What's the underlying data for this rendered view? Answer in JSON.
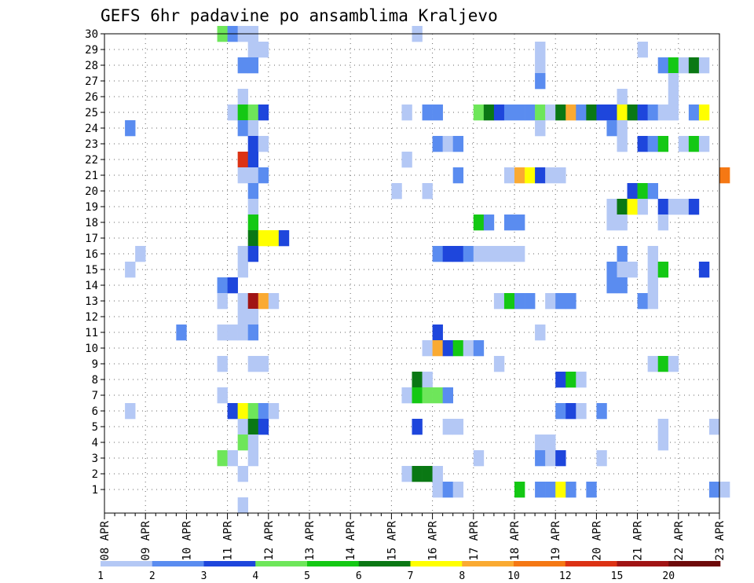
{
  "chart_data": {
    "type": "heatmap",
    "title": "GEFS 6hr padavine po ansamblima Kraljevo",
    "xlabel": "",
    "ylabel": "",
    "x_tick_labels": [
      "08 APR",
      "09 APR",
      "10 APR",
      "11 APR",
      "12 APR",
      "13 APR",
      "14 APR",
      "15 APR",
      "16 APR",
      "17 APR",
      "18 APR",
      "19 APR",
      "20 APR",
      "21 APR",
      "22 APR",
      "23 APR"
    ],
    "y_tick_labels": [
      "1",
      "2",
      "3",
      "4",
      "5",
      "6",
      "7",
      "8",
      "9",
      "10",
      "11",
      "12",
      "13",
      "14",
      "15",
      "16",
      "17",
      "18",
      "19",
      "20",
      "21",
      "22",
      "23",
      "24",
      "25",
      "26",
      "27",
      "28",
      "29",
      "30"
    ],
    "x_range": [
      "08 APR 00Z",
      "23 APR 00Z"
    ],
    "x_step_hours": 6,
    "y_range": [
      0,
      30
    ],
    "grid": "dotted",
    "color_levels": [
      "1",
      "2",
      "3",
      "4",
      "5",
      "6",
      "7",
      "8",
      "10",
      "12",
      "15",
      "20"
    ],
    "color_scale": [
      "#b4c8f5",
      "#5a8cf0",
      "#1e46dc",
      "#6ee65a",
      "#14c814",
      "#0a7814",
      "#ffff00",
      "#faaa32",
      "#f57814",
      "#dc3214",
      "#a01414",
      "#6e0a0a"
    ],
    "cell_encoding": "[member, time_step_index_from_start, color_level_index]",
    "cells": [
      [
        30,
        11,
        3
      ],
      [
        30,
        12,
        1
      ],
      [
        30,
        13,
        0
      ],
      [
        30,
        14,
        0
      ],
      [
        30,
        30,
        0
      ],
      [
        29,
        14,
        0
      ],
      [
        29,
        15,
        0
      ],
      [
        29,
        42,
        0
      ],
      [
        29,
        52,
        0
      ],
      [
        28,
        13,
        1
      ],
      [
        28,
        14,
        1
      ],
      [
        28,
        42,
        0
      ],
      [
        28,
        54,
        1
      ],
      [
        28,
        55,
        4
      ],
      [
        28,
        56,
        0
      ],
      [
        28,
        57,
        5
      ],
      [
        28,
        58,
        0
      ],
      [
        27,
        42,
        1
      ],
      [
        27,
        55,
        0
      ],
      [
        26,
        13,
        0
      ],
      [
        26,
        50,
        0
      ],
      [
        26,
        55,
        0
      ],
      [
        25,
        12,
        0
      ],
      [
        25,
        13,
        4
      ],
      [
        25,
        14,
        3
      ],
      [
        25,
        15,
        2
      ],
      [
        25,
        29,
        0
      ],
      [
        25,
        31,
        1
      ],
      [
        25,
        32,
        1
      ],
      [
        25,
        36,
        3
      ],
      [
        25,
        37,
        5
      ],
      [
        25,
        38,
        2
      ],
      [
        25,
        39,
        1
      ],
      [
        25,
        40,
        1
      ],
      [
        25,
        41,
        1
      ],
      [
        25,
        42,
        3
      ],
      [
        25,
        43,
        0
      ],
      [
        25,
        44,
        5
      ],
      [
        25,
        45,
        7
      ],
      [
        25,
        46,
        1
      ],
      [
        25,
        47,
        5
      ],
      [
        25,
        48,
        2
      ],
      [
        25,
        49,
        2
      ],
      [
        25,
        50,
        6
      ],
      [
        25,
        51,
        5
      ],
      [
        25,
        52,
        2
      ],
      [
        25,
        53,
        1
      ],
      [
        25,
        54,
        0
      ],
      [
        25,
        55,
        0
      ],
      [
        25,
        57,
        1
      ],
      [
        25,
        58,
        6
      ],
      [
        24,
        2,
        1
      ],
      [
        24,
        13,
        1
      ],
      [
        24,
        14,
        0
      ],
      [
        24,
        42,
        0
      ],
      [
        24,
        49,
        1
      ],
      [
        24,
        50,
        0
      ],
      [
        23,
        14,
        2
      ],
      [
        23,
        15,
        0
      ],
      [
        23,
        32,
        1
      ],
      [
        23,
        33,
        0
      ],
      [
        23,
        34,
        1
      ],
      [
        23,
        50,
        0
      ],
      [
        23,
        52,
        2
      ],
      [
        23,
        53,
        1
      ],
      [
        23,
        54,
        4
      ],
      [
        23,
        56,
        0
      ],
      [
        23,
        57,
        4
      ],
      [
        23,
        58,
        0
      ],
      [
        22,
        13,
        9
      ],
      [
        22,
        14,
        2
      ],
      [
        22,
        29,
        0
      ],
      [
        21,
        13,
        0
      ],
      [
        21,
        14,
        0
      ],
      [
        21,
        15,
        1
      ],
      [
        21,
        34,
        1
      ],
      [
        21,
        39,
        0
      ],
      [
        21,
        40,
        7
      ],
      [
        21,
        41,
        6
      ],
      [
        21,
        42,
        2
      ],
      [
        21,
        43,
        0
      ],
      [
        21,
        44,
        0
      ],
      [
        21,
        60,
        8
      ],
      [
        20,
        14,
        1
      ],
      [
        20,
        28,
        0
      ],
      [
        20,
        31,
        0
      ],
      [
        20,
        51,
        2
      ],
      [
        20,
        52,
        4
      ],
      [
        20,
        53,
        1
      ],
      [
        19,
        14,
        0
      ],
      [
        19,
        49,
        0
      ],
      [
        19,
        50,
        5
      ],
      [
        19,
        51,
        6
      ],
      [
        19,
        52,
        0
      ],
      [
        19,
        54,
        2
      ],
      [
        19,
        55,
        0
      ],
      [
        19,
        56,
        0
      ],
      [
        19,
        57,
        2
      ],
      [
        18,
        14,
        4
      ],
      [
        18,
        36,
        4
      ],
      [
        18,
        37,
        1
      ],
      [
        18,
        39,
        1
      ],
      [
        18,
        40,
        1
      ],
      [
        18,
        49,
        0
      ],
      [
        18,
        50,
        0
      ],
      [
        18,
        54,
        0
      ],
      [
        17,
        14,
        5
      ],
      [
        17,
        15,
        6
      ],
      [
        17,
        16,
        6
      ],
      [
        17,
        17,
        2
      ],
      [
        16,
        3,
        0
      ],
      [
        16,
        13,
        0
      ],
      [
        16,
        14,
        2
      ],
      [
        16,
        32,
        1
      ],
      [
        16,
        33,
        2
      ],
      [
        16,
        34,
        2
      ],
      [
        16,
        35,
        1
      ],
      [
        16,
        36,
        0
      ],
      [
        16,
        37,
        0
      ],
      [
        16,
        38,
        0
      ],
      [
        16,
        39,
        0
      ],
      [
        16,
        40,
        0
      ],
      [
        16,
        50,
        1
      ],
      [
        16,
        53,
        0
      ],
      [
        15,
        2,
        0
      ],
      [
        15,
        13,
        0
      ],
      [
        15,
        49,
        1
      ],
      [
        15,
        50,
        0
      ],
      [
        15,
        51,
        0
      ],
      [
        15,
        53,
        0
      ],
      [
        15,
        54,
        4
      ],
      [
        15,
        58,
        2
      ],
      [
        14,
        11,
        1
      ],
      [
        14,
        12,
        2
      ],
      [
        14,
        49,
        1
      ],
      [
        14,
        50,
        1
      ],
      [
        14,
        53,
        0
      ],
      [
        13,
        11,
        0
      ],
      [
        13,
        13,
        0
      ],
      [
        13,
        14,
        10
      ],
      [
        13,
        15,
        7
      ],
      [
        13,
        16,
        0
      ],
      [
        13,
        38,
        0
      ],
      [
        13,
        39,
        4
      ],
      [
        13,
        40,
        1
      ],
      [
        13,
        41,
        1
      ],
      [
        13,
        43,
        0
      ],
      [
        13,
        44,
        1
      ],
      [
        13,
        45,
        1
      ],
      [
        13,
        52,
        1
      ],
      [
        13,
        53,
        0
      ],
      [
        12,
        13,
        0
      ],
      [
        12,
        14,
        0
      ],
      [
        11,
        7,
        1
      ],
      [
        11,
        11,
        0
      ],
      [
        11,
        12,
        0
      ],
      [
        11,
        13,
        0
      ],
      [
        11,
        14,
        1
      ],
      [
        11,
        32,
        2
      ],
      [
        11,
        42,
        0
      ],
      [
        10,
        31,
        0
      ],
      [
        10,
        32,
        7
      ],
      [
        10,
        33,
        2
      ],
      [
        10,
        34,
        4
      ],
      [
        10,
        35,
        0
      ],
      [
        10,
        36,
        1
      ],
      [
        9,
        11,
        0
      ],
      [
        9,
        14,
        0
      ],
      [
        9,
        15,
        0
      ],
      [
        9,
        38,
        0
      ],
      [
        9,
        53,
        0
      ],
      [
        9,
        54,
        4
      ],
      [
        9,
        55,
        0
      ],
      [
        8,
        30,
        5
      ],
      [
        8,
        31,
        0
      ],
      [
        8,
        44,
        2
      ],
      [
        8,
        45,
        4
      ],
      [
        8,
        46,
        0
      ],
      [
        7,
        11,
        0
      ],
      [
        7,
        29,
        0
      ],
      [
        7,
        30,
        4
      ],
      [
        7,
        31,
        3
      ],
      [
        7,
        32,
        3
      ],
      [
        7,
        33,
        1
      ],
      [
        6,
        2,
        0
      ],
      [
        6,
        12,
        2
      ],
      [
        6,
        13,
        6
      ],
      [
        6,
        14,
        3
      ],
      [
        6,
        15,
        1
      ],
      [
        6,
        16,
        0
      ],
      [
        6,
        44,
        1
      ],
      [
        6,
        45,
        2
      ],
      [
        6,
        46,
        0
      ],
      [
        6,
        48,
        1
      ],
      [
        5,
        13,
        0
      ],
      [
        5,
        14,
        5
      ],
      [
        5,
        15,
        2
      ],
      [
        5,
        30,
        2
      ],
      [
        5,
        33,
        0
      ],
      [
        5,
        34,
        0
      ],
      [
        5,
        54,
        0
      ],
      [
        5,
        59,
        0
      ],
      [
        4,
        13,
        3
      ],
      [
        4,
        14,
        0
      ],
      [
        4,
        42,
        0
      ],
      [
        4,
        43,
        0
      ],
      [
        4,
        54,
        0
      ],
      [
        3,
        11,
        3
      ],
      [
        3,
        12,
        0
      ],
      [
        3,
        14,
        0
      ],
      [
        3,
        36,
        0
      ],
      [
        3,
        42,
        1
      ],
      [
        3,
        43,
        0
      ],
      [
        3,
        44,
        2
      ],
      [
        3,
        48,
        0
      ],
      [
        2,
        13,
        0
      ],
      [
        2,
        29,
        0
      ],
      [
        2,
        30,
        5
      ],
      [
        2,
        31,
        5
      ],
      [
        2,
        32,
        0
      ],
      [
        1,
        32,
        0
      ],
      [
        1,
        33,
        1
      ],
      [
        1,
        34,
        0
      ],
      [
        1,
        40,
        4
      ],
      [
        1,
        42,
        1
      ],
      [
        1,
        43,
        1
      ],
      [
        1,
        44,
        6
      ],
      [
        1,
        45,
        1
      ],
      [
        1,
        47,
        1
      ],
      [
        1,
        59,
        1
      ],
      [
        1,
        60,
        0
      ],
      [
        0,
        13,
        0
      ]
    ]
  }
}
